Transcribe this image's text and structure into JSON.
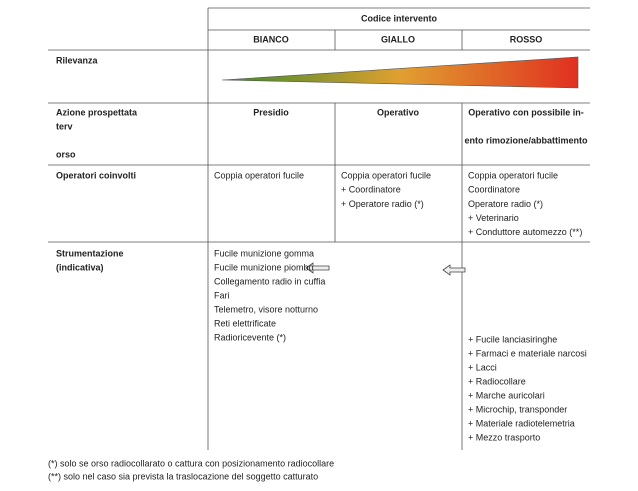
{
  "table": {
    "header": {
      "group": "Codice intervento",
      "columns": [
        "BIANCO",
        "GIALLO",
        "ROSSO"
      ]
    },
    "relevance_label": "Rilevanza",
    "action": {
      "label": [
        "Azione prospettata",
        "terv",
        "orso"
      ],
      "cells": [
        [
          "Presidio"
        ],
        [
          "Operativo"
        ],
        [
          "Operativo con possibile in-",
          "ento rimozione/abbattimento"
        ]
      ]
    },
    "operators": {
      "label": [
        "Operatori coinvolti"
      ],
      "cells": [
        [
          "Coppia operatori fucile"
        ],
        [
          "Coppia operatori fucile",
          "+ Coordinatore",
          "+ Operatore radio (*)"
        ],
        [
          "Coppia operatori fucile",
          "Coordinatore",
          "Operatore radio (*)",
          "+ Veterinario",
          "+ Conduttore automezzo (**)"
        ]
      ]
    },
    "equipment": {
      "label": [
        "Strumentazione",
        "(indicativa)"
      ],
      "bianco": [
        "Fucile munizione gomma",
        "Fucile munizione piombo",
        "Collegamento radio in cuffia",
        "Fari",
        "Telemetro, visore notturno",
        "Reti elettrificate",
        "Radioricevente (*)"
      ],
      "rosso": [
        "+ Fucile lanciasiringhe",
        "+ Farmaci e materiale narcosi",
        "+ Lacci",
        "+ Radiocollare",
        "+ Marche auricolari",
        "+ Microchip, transponder",
        "+ Materiale radiotelemetria",
        "+ Mezzo trasporto"
      ]
    }
  },
  "footnotes": [
    "(*) solo se orso radiocollarato o cattura con posizionamento radiocollare",
    "(**) solo nel caso sia prevista la traslocazione del soggetto catturato"
  ]
}
